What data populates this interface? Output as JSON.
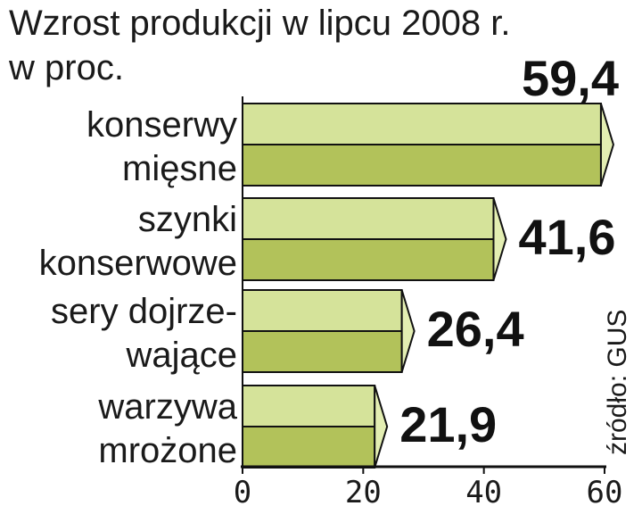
{
  "title_line1": "Wzrost produkcji w lipcu 2008 r.",
  "title_line2": "w proc.",
  "source": "źródło: GUS",
  "colors": {
    "bar_light": "#d5e39a",
    "bar_dark": "#b2c25a",
    "bar_tip": "#e3eeb2",
    "axis": "#111111"
  },
  "chart_data": {
    "type": "bar",
    "orientation": "horizontal",
    "title": "Wzrost produkcji w lipcu 2008 r.",
    "subtitle": "w proc.",
    "categories": [
      [
        "konserwy",
        "mięsne"
      ],
      [
        "szynki",
        "konserwowe"
      ],
      [
        "sery dojrze-",
        "wające"
      ],
      [
        "warzywa",
        "mrożone"
      ]
    ],
    "values": [
      59.4,
      41.6,
      26.4,
      21.9
    ],
    "value_labels": [
      "59,4",
      "41,6",
      "26,4",
      "21,9"
    ],
    "xlim": [
      0,
      60
    ],
    "x_ticks": [
      "0",
      "20",
      "40",
      "60"
    ],
    "grid": false
  }
}
